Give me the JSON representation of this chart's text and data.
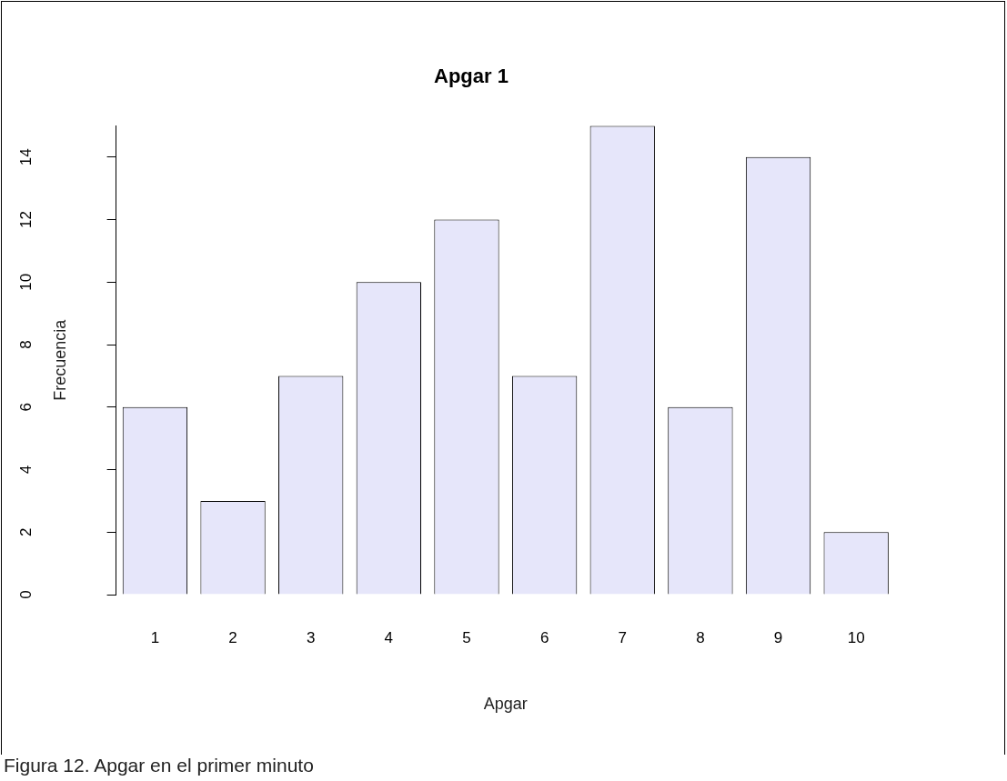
{
  "chart_data": {
    "type": "bar",
    "title": "Apgar 1",
    "xlabel": "Apgar",
    "ylabel": "Frecuencia",
    "categories": [
      "1",
      "2",
      "3",
      "4",
      "5",
      "6",
      "7",
      "8",
      "9",
      "10"
    ],
    "values": [
      6,
      3,
      7,
      10,
      12,
      7,
      15,
      6,
      14,
      2
    ],
    "color": "#e6e6fa",
    "ylim": [
      0,
      15
    ],
    "yticks": [
      0,
      2,
      4,
      6,
      8,
      10,
      12,
      14
    ],
    "grid": false,
    "legend": false,
    "annotations": [
      "Figura 12.  Apgar en el primer minuto"
    ]
  }
}
